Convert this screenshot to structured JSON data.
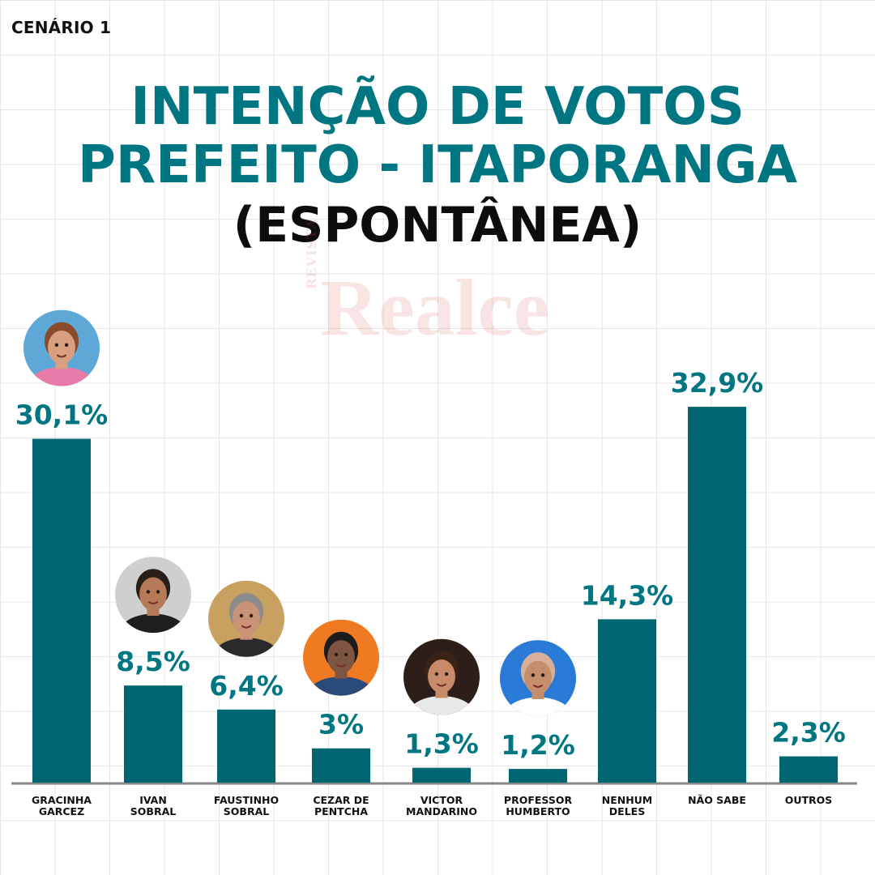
{
  "header": {
    "scenario": "CENÁRIO 1",
    "title_line1": "INTENÇÃO DE VOTOS",
    "title_line2": "PREFEITO - ITAPORANGA",
    "title_line3": "(ESPONTÂNEA)"
  },
  "watermark": {
    "small": "REVISTA",
    "big": "Realce"
  },
  "colors": {
    "bar": "#006671",
    "title": "#007683",
    "title_secondary": "#0d0d0d",
    "axis": "#888888",
    "label": "#111111"
  },
  "chart_data": {
    "type": "bar",
    "title": "",
    "xlabel": "",
    "ylabel": "",
    "ylim": [
      0,
      35
    ],
    "grid": true,
    "legend": "none",
    "categories": [
      [
        "GRACINHA",
        "GARCEZ"
      ],
      [
        "IVAN",
        "SOBRAL"
      ],
      [
        "FAUSTINHO",
        "SOBRAL"
      ],
      [
        "CEZAR DE",
        "PENTCHA"
      ],
      [
        "VICTOR",
        "MANDARINO"
      ],
      [
        "PROFESSOR",
        "HUMBERTO"
      ],
      [
        "NENHUM",
        "DELES"
      ],
      [
        "NÃO SABE"
      ],
      [
        "OUTROS"
      ]
    ],
    "values": [
      30.1,
      8.5,
      6.4,
      3,
      1.3,
      1.2,
      14.3,
      32.9,
      2.3
    ],
    "value_labels": [
      "30,1%",
      "8,5%",
      "6,4%",
      "3%",
      "1,3%",
      "1,2%",
      "14,3%",
      "32,9%",
      "2,3%"
    ],
    "photos": [
      {
        "has_photo": true,
        "bg": "#5ea8d8",
        "skin": "#d9a07f",
        "hair": "#8a4a2c",
        "shirt": "#e87aa8"
      },
      {
        "has_photo": true,
        "bg": "#cfcfcf",
        "skin": "#b57a57",
        "hair": "#2a1e18",
        "shirt": "#1e1e1e"
      },
      {
        "has_photo": true,
        "bg": "#c8a060",
        "skin": "#c89377",
        "hair": "#8c8c8c",
        "shirt": "#2a2a2a"
      },
      {
        "has_photo": true,
        "bg": "#f07a22",
        "skin": "#7e5540",
        "hair": "#1c1c1c",
        "shirt": "#2a4a7a"
      },
      {
        "has_photo": true,
        "bg": "#2e1e1a",
        "skin": "#c88b6a",
        "hair": "#3a2216",
        "shirt": "#e8e8e8"
      },
      {
        "has_photo": true,
        "bg": "#2a7ad8",
        "skin": "#c48d6c",
        "hair": "#d8b09a",
        "shirt": "#ffffff"
      },
      {
        "has_photo": false
      },
      {
        "has_photo": false
      },
      {
        "has_photo": false
      }
    ]
  }
}
